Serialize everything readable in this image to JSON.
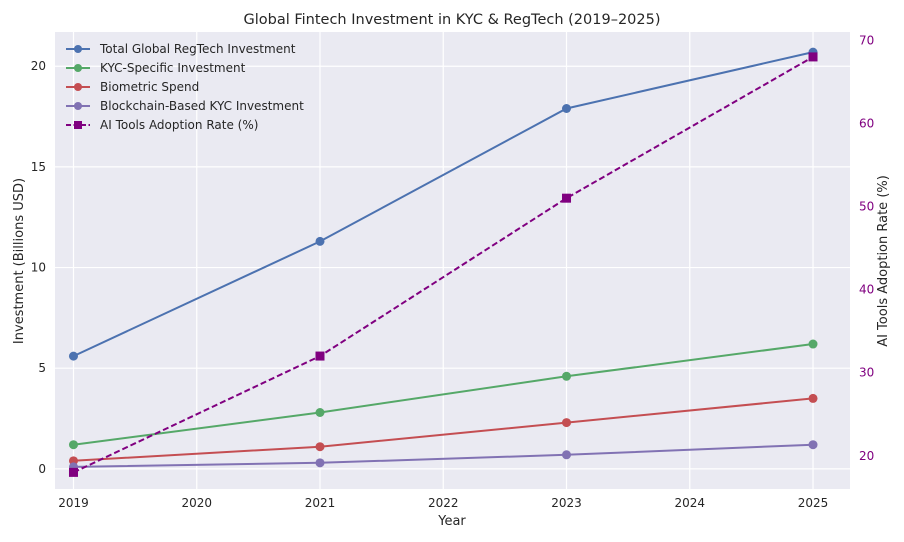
{
  "chart_data": {
    "type": "line",
    "title": "Global Fintech Investment in KYC & RegTech (2019–2025)",
    "xlabel": "Year",
    "ylabel": "Investment (Billions USD)",
    "ylabel_right": "AI Tools Adoption Rate (%)",
    "x": [
      2019,
      2021,
      2023,
      2025
    ],
    "xlim": [
      2018.85,
      2025.3
    ],
    "x_ticks": [
      2019,
      2020,
      2021,
      2022,
      2023,
      2024,
      2025
    ],
    "ylim": [
      -1,
      21.7
    ],
    "y_ticks": [
      0,
      5,
      10,
      15,
      20
    ],
    "ylim_right": [
      16,
      71
    ],
    "y_ticks_right": [
      20,
      30,
      40,
      50,
      60,
      70
    ],
    "grid": true,
    "legend_position": "top-left",
    "series": [
      {
        "name": "Total Global RegTech Investment",
        "axis": "left",
        "values": [
          5.6,
          11.3,
          17.9,
          20.7
        ],
        "color": "#4c72b0",
        "marker": "circle",
        "linestyle": "solid"
      },
      {
        "name": "KYC-Specific Investment",
        "axis": "left",
        "values": [
          1.2,
          2.8,
          4.6,
          6.2
        ],
        "color": "#55a868",
        "marker": "circle",
        "linestyle": "solid"
      },
      {
        "name": "Biometric Spend",
        "axis": "left",
        "values": [
          0.4,
          1.1,
          2.3,
          3.5
        ],
        "color": "#c44e52",
        "marker": "circle",
        "linestyle": "solid"
      },
      {
        "name": "Blockchain-Based KYC Investment",
        "axis": "left",
        "values": [
          0.1,
          0.3,
          0.7,
          1.2
        ],
        "color": "#8172b3",
        "marker": "circle",
        "linestyle": "solid"
      },
      {
        "name": "AI Tools Adoption Rate (%)",
        "axis": "right",
        "values": [
          18,
          32,
          51,
          68
        ],
        "color": "#800080",
        "marker": "square",
        "linestyle": "dashed"
      }
    ]
  }
}
